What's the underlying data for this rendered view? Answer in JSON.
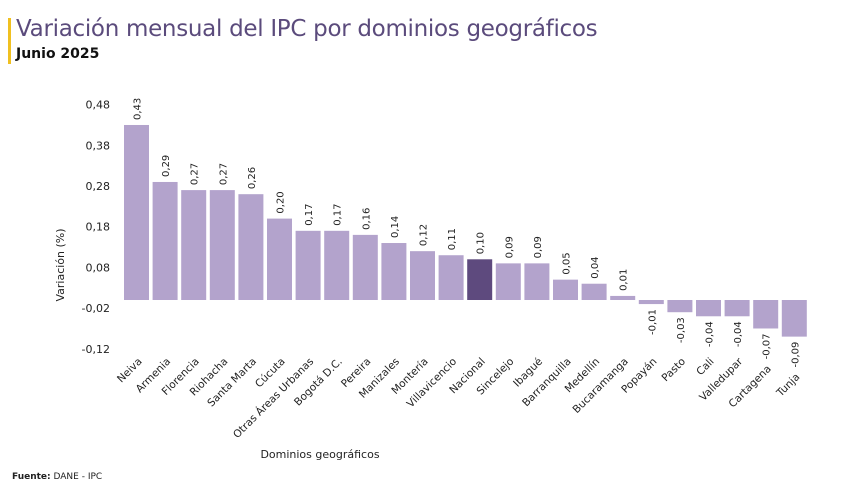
{
  "header": {
    "title": "Variación mensual del IPC por dominios geográficos",
    "subtitle": "Junio 2025"
  },
  "footer": {
    "source_label": "Fuente:",
    "source_value": "DANE - IPC"
  },
  "colors": {
    "bar": "#b3a3cc",
    "highlight": "#5e4a7e",
    "accent": "#f0c020",
    "title": "#5b4b7c"
  },
  "chart_data": {
    "type": "bar",
    "xlabel": "Dominios geográficos",
    "ylabel": "Variación (%)",
    "ylim": [
      -0.12,
      0.48
    ],
    "yticks": [
      "0,48",
      "0,38",
      "0,28",
      "0,18",
      "0,08",
      "-0,02",
      "-0,12"
    ],
    "ytick_values": [
      0.48,
      0.38,
      0.28,
      0.18,
      0.08,
      -0.02,
      -0.12
    ],
    "grid": false,
    "highlight": "Nacional",
    "categories": [
      "Neiva",
      "Armenia",
      "Florencia",
      "Riohacha",
      "Santa Marta",
      "Cúcuta",
      "Otras Áreas Urbanas",
      "Bogotá D.C.",
      "Pereira",
      "Manizales",
      "Montería",
      "Villavicencio",
      "Nacional",
      "Sincelejo",
      "Ibagué",
      "Barranquilla",
      "Medellín",
      "Bucaramanga",
      "Popayán",
      "Pasto",
      "Cali",
      "Valledupar",
      "Cartagena",
      "Tunja"
    ],
    "values": [
      0.43,
      0.29,
      0.27,
      0.27,
      0.26,
      0.2,
      0.17,
      0.17,
      0.16,
      0.14,
      0.12,
      0.11,
      0.1,
      0.09,
      0.09,
      0.05,
      0.04,
      0.01,
      -0.01,
      -0.03,
      -0.04,
      -0.04,
      -0.07,
      -0.09
    ],
    "labels": [
      "0,43",
      "0,29",
      "0,27",
      "0,27",
      "0,26",
      "0,20",
      "0,17",
      "0,17",
      "0,16",
      "0,14",
      "0,12",
      "0,11",
      "0,10",
      "0,09",
      "0,09",
      "0,05",
      "0,04",
      "0,01",
      "-0,01",
      "-0,03",
      "-0,04",
      "-0,04",
      "-0,07",
      "-0,09"
    ]
  }
}
